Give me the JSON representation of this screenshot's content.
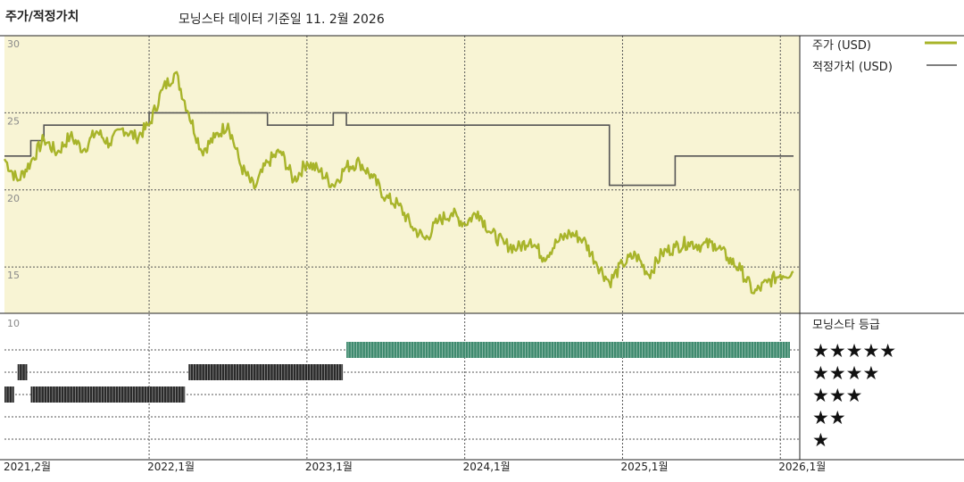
{
  "header": {
    "chart_title": "주가/적정가치",
    "source_note": "모닝스타 데이터 기준일 11. 2월 2026"
  },
  "legend": {
    "price_label": "주가 (USD)",
    "fair_value_label": "적정가치 (USD)",
    "rating_title": "모닝스타 등급"
  },
  "colors": {
    "price_line": "#a8b42a",
    "fair_value_line": "#555555",
    "plot_background": "#f8f4d4",
    "rating_5_star": "#3e8a6e",
    "rating_other": "#2a2a2a"
  },
  "chart_data": {
    "type": "line",
    "x_range": [
      "2021-02",
      "2026-02"
    ],
    "ylim": [
      12,
      30
    ],
    "yticks": [
      15,
      20,
      25,
      30
    ],
    "x_tick_labels": [
      "2021,2월",
      "2022,1월",
      "2023,1월",
      "2024,1월",
      "2025,1월",
      "2026,1월"
    ],
    "grid": true,
    "legend_position": "right",
    "series": [
      {
        "name": "주가 (USD)",
        "points": [
          [
            "2021-02",
            22.0
          ],
          [
            "2021-03",
            20.6
          ],
          [
            "2021-04",
            21.8
          ],
          [
            "2021-05",
            23.3
          ],
          [
            "2021-06",
            22.4
          ],
          [
            "2021-07",
            23.5
          ],
          [
            "2021-08",
            22.6
          ],
          [
            "2021-09",
            23.8
          ],
          [
            "2021-10",
            23.0
          ],
          [
            "2021-11",
            24.0
          ],
          [
            "2021-12",
            23.4
          ],
          [
            "2022-01",
            24.2
          ],
          [
            "2022-02",
            26.5
          ],
          [
            "2022-03",
            27.6
          ],
          [
            "2022-04",
            25.0
          ],
          [
            "2022-05",
            22.5
          ],
          [
            "2022-06",
            23.4
          ],
          [
            "2022-07",
            24.3
          ],
          [
            "2022-08",
            21.5
          ],
          [
            "2022-09",
            20.1
          ],
          [
            "2022-10",
            21.8
          ],
          [
            "2022-11",
            22.5
          ],
          [
            "2022-12",
            20.6
          ],
          [
            "2023-01",
            21.8
          ],
          [
            "2023-02",
            21.2
          ],
          [
            "2023-03",
            20.3
          ],
          [
            "2023-04",
            21.5
          ],
          [
            "2023-05",
            21.8
          ],
          [
            "2023-06",
            20.8
          ],
          [
            "2023-07",
            19.5
          ],
          [
            "2023-08",
            19.0
          ],
          [
            "2023-09",
            17.6
          ],
          [
            "2023-10",
            16.8
          ],
          [
            "2023-11",
            18.0
          ],
          [
            "2023-12",
            18.5
          ],
          [
            "2024-01",
            17.8
          ],
          [
            "2024-02",
            18.6
          ],
          [
            "2024-03",
            17.2
          ],
          [
            "2024-04",
            16.5
          ],
          [
            "2024-05",
            16.2
          ],
          [
            "2024-06",
            16.8
          ],
          [
            "2024-07",
            15.6
          ],
          [
            "2024-08",
            16.6
          ],
          [
            "2024-09",
            17.2
          ],
          [
            "2024-10",
            16.8
          ],
          [
            "2024-11",
            15.3
          ],
          [
            "2024-12",
            14.0
          ],
          [
            "2025-01",
            15.2
          ],
          [
            "2025-02",
            15.8
          ],
          [
            "2025-03",
            14.5
          ],
          [
            "2025-04",
            15.9
          ],
          [
            "2025-05",
            16.3
          ],
          [
            "2025-06",
            16.6
          ],
          [
            "2025-07",
            16.4
          ],
          [
            "2025-08",
            16.5
          ],
          [
            "2025-09",
            15.6
          ],
          [
            "2025-10",
            14.8
          ],
          [
            "2025-11",
            13.3
          ],
          [
            "2025-12",
            14.0
          ],
          [
            "2026-01",
            14.5
          ],
          [
            "2026-02",
            14.7
          ]
        ]
      },
      {
        "name": "적정가치 (USD)",
        "steps": [
          [
            "2021-02",
            22.2
          ],
          [
            "2021-04",
            23.2
          ],
          [
            "2021-05",
            24.2
          ],
          [
            "2022-01",
            25.0
          ],
          [
            "2022-10",
            24.2
          ],
          [
            "2023-03",
            25.0
          ],
          [
            "2023-04",
            24.2
          ],
          [
            "2024-12",
            20.3
          ],
          [
            "2025-05",
            22.2
          ],
          [
            "2026-02",
            22.2
          ]
        ]
      }
    ]
  },
  "rating_history": {
    "y_max_label": "10",
    "star_labels": [
      "★★★★★",
      "★★★★",
      "★★★",
      "★★",
      "★"
    ],
    "periods": [
      {
        "from": "2021-02",
        "to": "2021-03",
        "stars": 3
      },
      {
        "from": "2021-03",
        "to": "2021-04",
        "stars": 4
      },
      {
        "from": "2021-04",
        "to": "2022-04",
        "stars": 3
      },
      {
        "from": "2022-04",
        "to": "2023-04",
        "stars": 4
      },
      {
        "from": "2023-04",
        "to": "2026-02",
        "stars": 5
      }
    ]
  }
}
